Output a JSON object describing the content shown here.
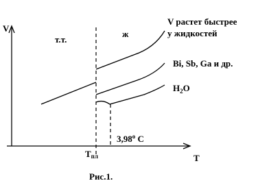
{
  "axes": {
    "y": "V",
    "x": "T"
  },
  "regions": {
    "solid": "т.т.",
    "liquid": "ж"
  },
  "labels": {
    "fast_line1": "V растет быстрее",
    "fast_line2": "у жидкостей",
    "bi": "Bi, Sb, Ga  и др.",
    "h2o": {
      "base": "H",
      "sub": "2",
      "rest": "O"
    },
    "temp": {
      "num": "3,98",
      "deg": "o",
      "unit": " C"
    },
    "tmelt": {
      "base": "T",
      "sub": "пл"
    }
  },
  "caption": "Рис.1."
}
